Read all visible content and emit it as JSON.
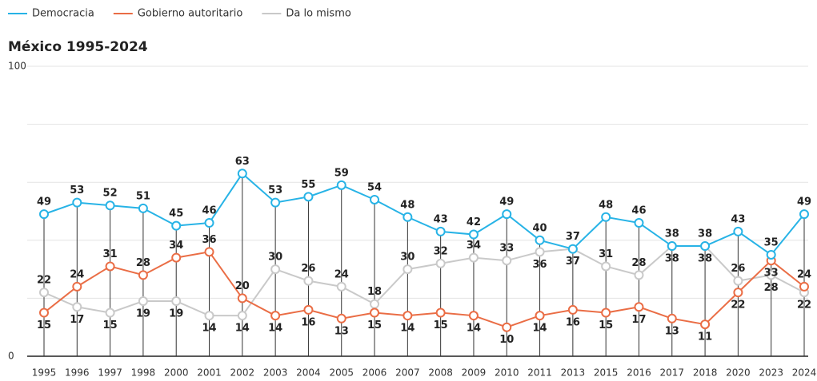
{
  "chart_data": {
    "type": "line",
    "title": "México 1995-2024",
    "categories": [
      "1995",
      "1996",
      "1997",
      "1998",
      "2000",
      "2001",
      "2002",
      "2003",
      "2004",
      "2005",
      "2006",
      "2007",
      "2008",
      "2009",
      "2010",
      "2011",
      "2013",
      "2015",
      "2016",
      "2017",
      "2018",
      "2020",
      "2023",
      "2024"
    ],
    "series": [
      {
        "name": "Democracia",
        "color": "#27b3e6",
        "values": [
          49,
          53,
          52,
          51,
          45,
          46,
          63,
          53,
          55,
          59,
          54,
          48,
          43,
          42,
          49,
          40,
          37,
          48,
          46,
          38,
          38,
          43,
          35,
          49
        ]
      },
      {
        "name": "Gobierno autoritario",
        "color": "#ea6d45",
        "values": [
          15,
          24,
          31,
          28,
          34,
          36,
          20,
          14,
          16,
          13,
          15,
          14,
          15,
          14,
          10,
          14,
          16,
          15,
          17,
          13,
          11,
          22,
          33,
          24
        ]
      },
      {
        "name": "Da lo mismo",
        "color": "#c9c9c9",
        "values": [
          22,
          17,
          15,
          19,
          19,
          14,
          14,
          30,
          26,
          24,
          18,
          30,
          32,
          34,
          33,
          36,
          37,
          31,
          28,
          38,
          38,
          26,
          28,
          22
        ]
      }
    ],
    "ylim": [
      0,
      100
    ],
    "yticks": [
      0,
      100
    ],
    "grid_lines": [
      20,
      40,
      60,
      80
    ],
    "grid": true,
    "legend": "top-left"
  }
}
